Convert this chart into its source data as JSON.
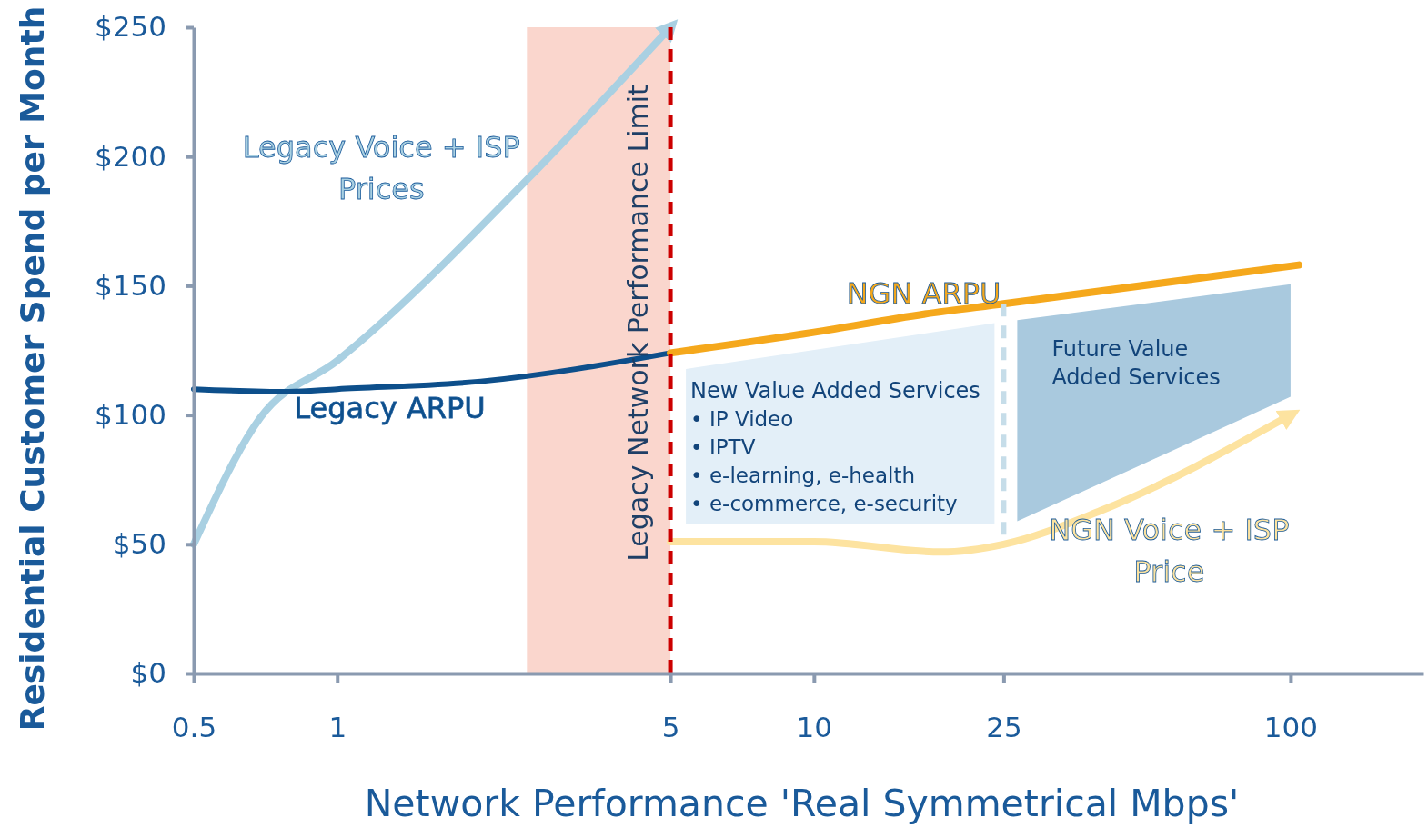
{
  "chart_data": {
    "type": "line",
    "xlabel": "Network Performance 'Real Symmetrical Mbps'",
    "ylabel": "Residential Customer Spend per Month",
    "log": "x",
    "xlim": [
      0.5,
      190
    ],
    "xticks": [
      0.5,
      1,
      5,
      10,
      25,
      100
    ],
    "ylim": [
      0,
      250
    ],
    "yticks": [
      {
        "value": 0,
        "label": "$0"
      },
      {
        "value": 50,
        "label": "$50"
      },
      {
        "value": 100,
        "label": "$100"
      },
      {
        "value": 150,
        "label": "$150"
      },
      {
        "value": 200,
        "label": "$200"
      },
      {
        "value": 250,
        "label": "$250"
      }
    ],
    "grid": false,
    "legend": false,
    "marker": "none",
    "line_style": "solid",
    "series": [
      {
        "name": "Legacy Voice + ISP Prices",
        "color": "#a9d0e2",
        "x": [
          0.5,
          0.69,
          1,
          2.5,
          5
        ],
        "values": [
          50,
          99,
          121,
          191,
          250
        ]
      },
      {
        "name": "Legacy ARPU",
        "color": "#0d4f8b",
        "x": [
          0.5,
          0.79,
          1,
          2,
          5
        ],
        "values": [
          110,
          109,
          110,
          113,
          124
        ]
      },
      {
        "name": "NGN ARPU",
        "color": "#f5a81c",
        "x": [
          5,
          10,
          17,
          25,
          104
        ],
        "values": [
          124,
          132,
          139,
          143,
          158
        ]
      },
      {
        "name": "NGN Voice + ISP Price",
        "color": "#fde3a0",
        "x": [
          5,
          10,
          18.5,
          25,
          40,
          100
        ],
        "values": [
          51,
          51,
          47,
          50,
          63,
          100
        ]
      }
    ],
    "bands": [
      {
        "axis": "x",
        "from": 2.5,
        "to": 5,
        "color": "#f9d2c8"
      }
    ],
    "ref_lines": [
      {
        "axis": "x",
        "value": 5,
        "label": "Legacy Network Performance Limit",
        "color": "#cc0000",
        "line_style": "dashed"
      },
      {
        "axis": "x",
        "value": 25,
        "color": "#c6dde9",
        "line_style": "dashed"
      }
    ],
    "annotations": [
      "New Value Added Services",
      "• IP Video",
      "• IPTV",
      "• e-learning, e-health",
      "• e-commerce, e-security",
      "Future Value Added Services"
    ]
  }
}
